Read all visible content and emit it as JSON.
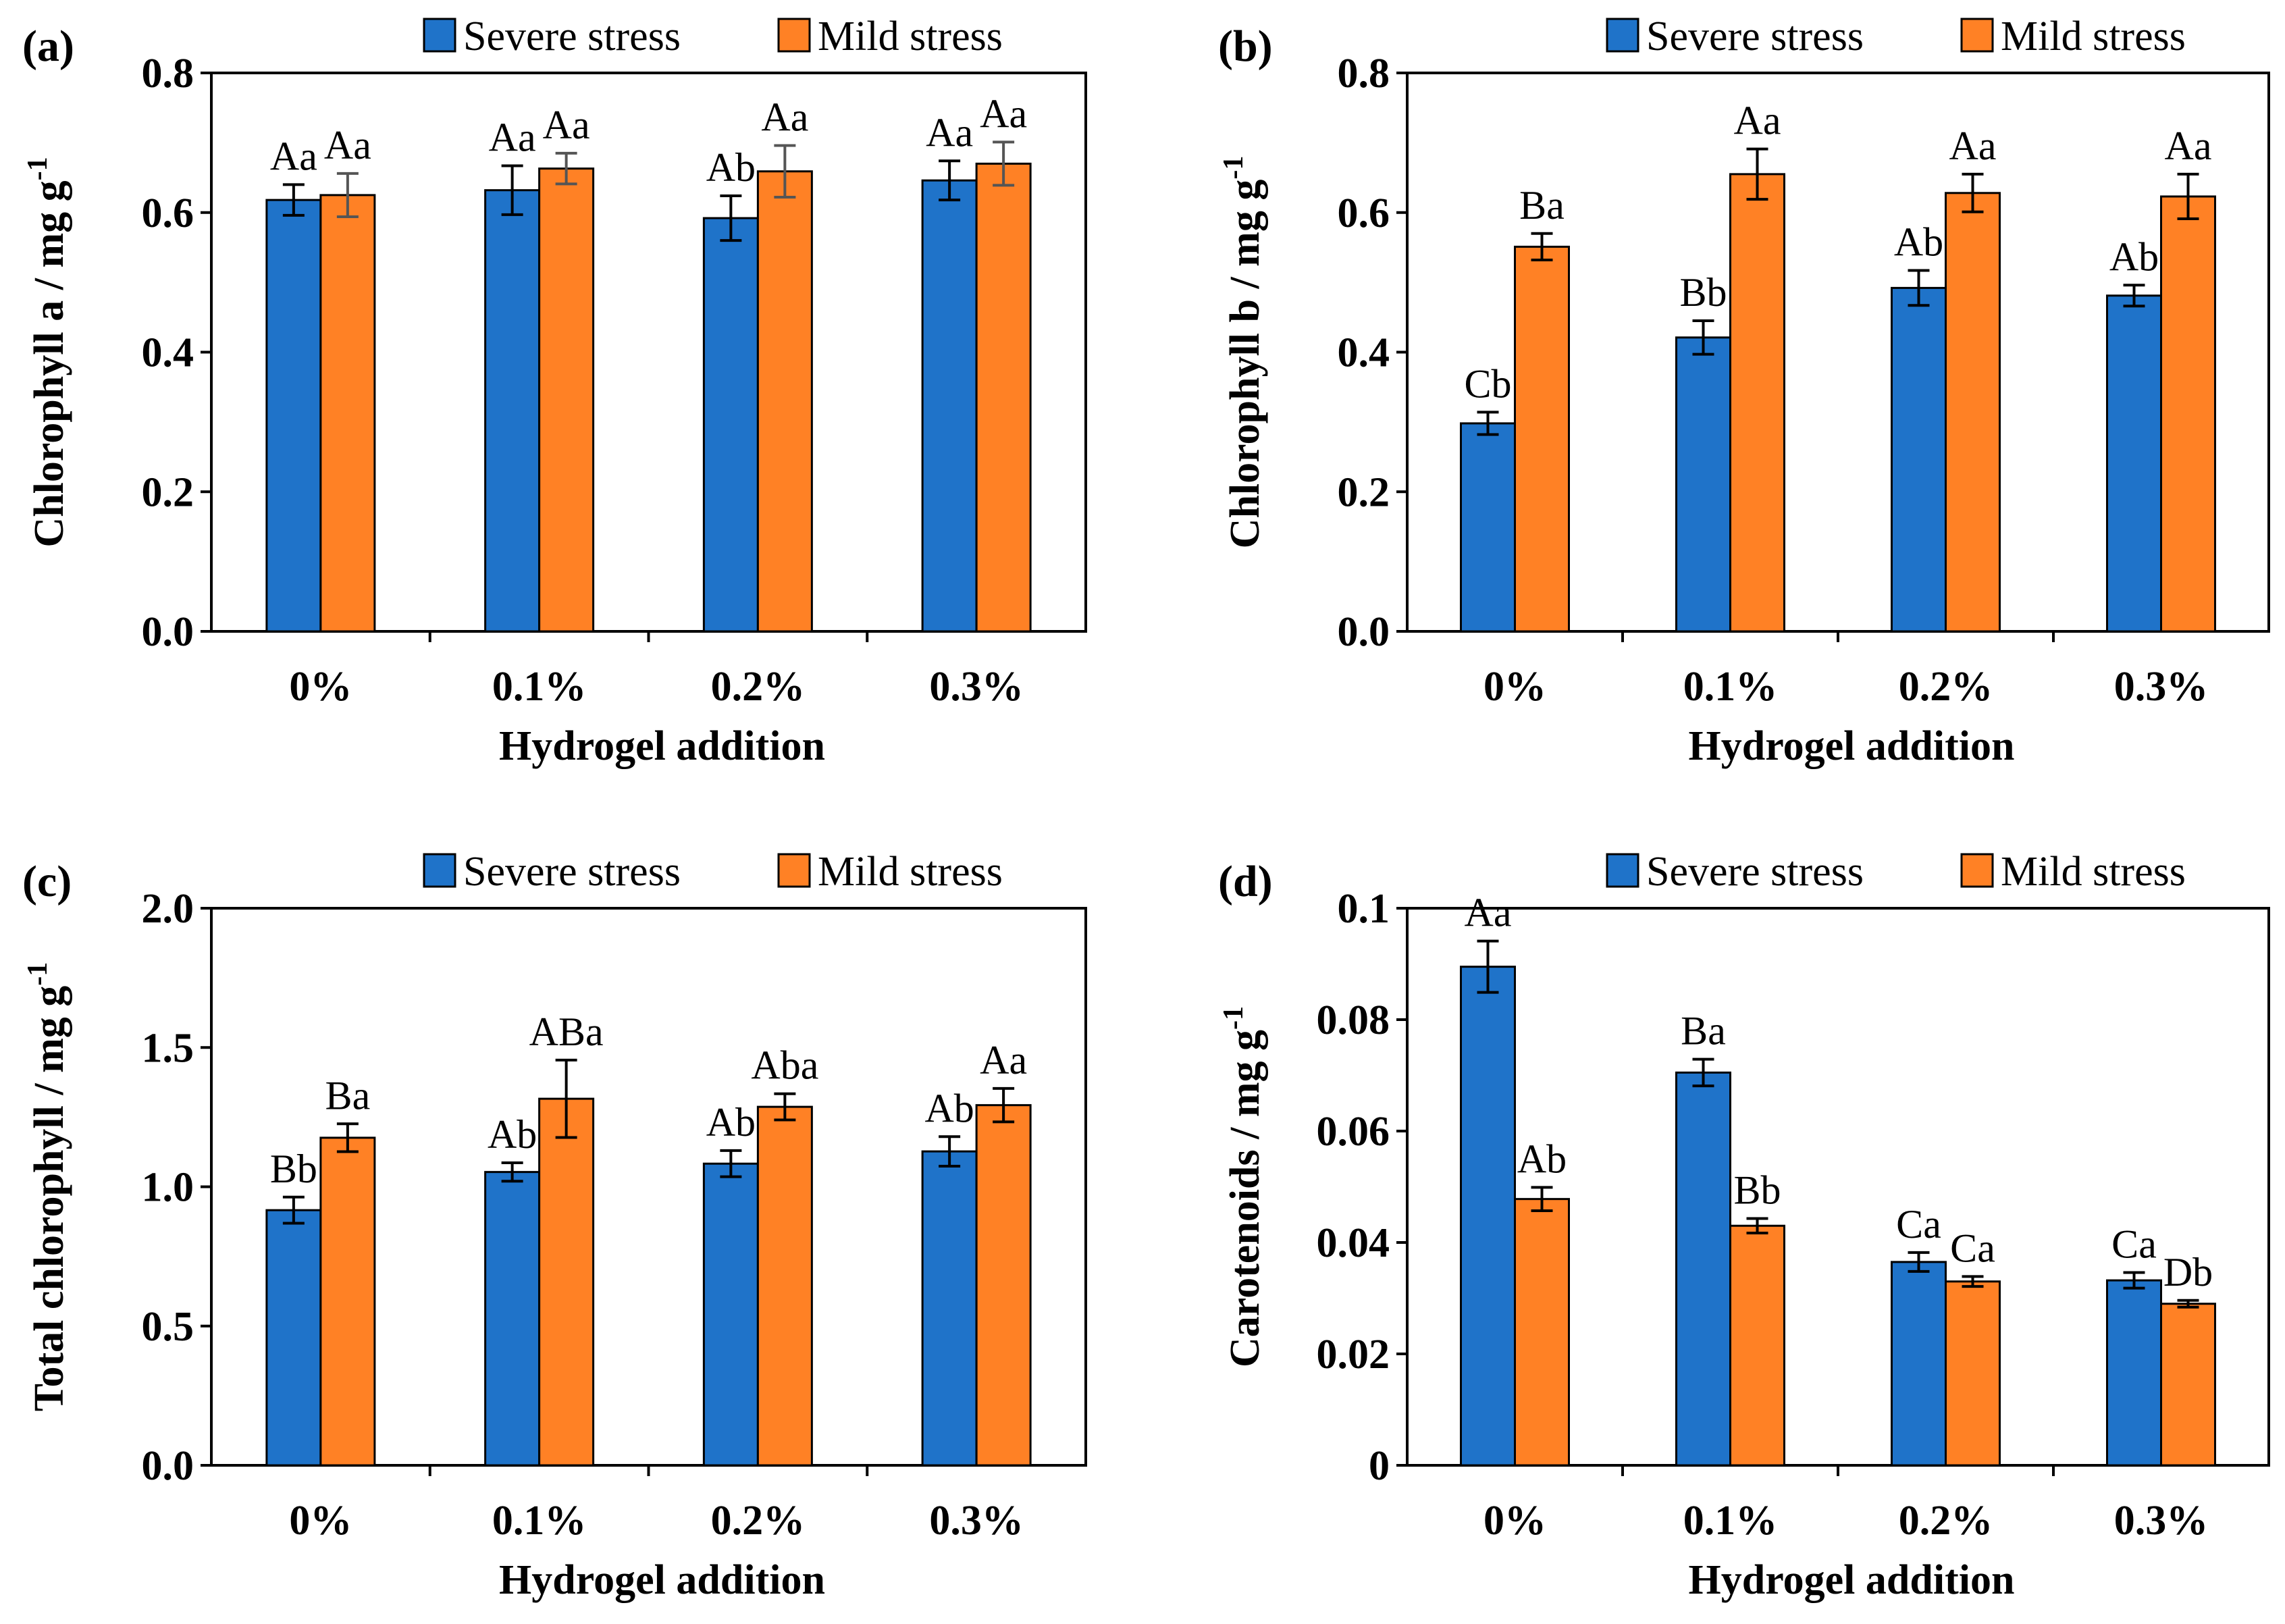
{
  "chart_data": [
    {
      "type": "bar",
      "panel_label": "(a)",
      "categories": [
        "0%",
        "0.1%",
        "0.2%",
        "0.3%"
      ],
      "xlabel": "Hydrogel addition",
      "ylabel_main": "Chlorophyll a / mg g",
      "ylabel_sup": "-1",
      "ylim": [
        0,
        0.8
      ],
      "yticks": [
        0,
        0.2,
        0.4,
        0.6,
        0.8
      ],
      "ytick_labels": [
        "0.0",
        "0.2",
        "0.4",
        "0.6",
        "0.8"
      ],
      "legend_position": "top-right",
      "series": [
        {
          "name": "Severe stress",
          "color": "#1f73c9",
          "values": [
            0.618,
            0.632,
            0.592,
            0.646
          ],
          "errors": [
            0.022,
            0.035,
            0.032,
            0.028
          ],
          "labels": [
            "Aa",
            "Aa",
            "Ab",
            "Aa"
          ]
        },
        {
          "name": "Mild stress",
          "color": "#ff8125",
          "values": [
            0.625,
            0.663,
            0.659,
            0.67
          ],
          "errors": [
            0.031,
            0.022,
            0.037,
            0.031
          ],
          "labels": [
            "Aa",
            "Aa",
            "Aa",
            "Aa"
          ]
        }
      ]
    },
    {
      "type": "bar",
      "panel_label": "(b)",
      "categories": [
        "0%",
        "0.1%",
        "0.2%",
        "0.3%"
      ],
      "xlabel": "Hydrogel addition",
      "ylabel_main": "Chlorophyll b / mg g",
      "ylabel_sup": "-1",
      "ylim": [
        0,
        0.8
      ],
      "yticks": [
        0,
        0.2,
        0.4,
        0.6,
        0.8
      ],
      "ytick_labels": [
        "0.0",
        "0.2",
        "0.4",
        "0.6",
        "0.8"
      ],
      "legend_position": "top-right",
      "series": [
        {
          "name": "Severe stress",
          "color": "#1f73c9",
          "values": [
            0.298,
            0.421,
            0.492,
            0.481
          ],
          "errors": [
            0.016,
            0.024,
            0.025,
            0.015
          ],
          "labels": [
            "Cb",
            "Bb",
            "Ab",
            "Ab"
          ]
        },
        {
          "name": "Mild stress",
          "color": "#ff8125",
          "values": [
            0.551,
            0.655,
            0.628,
            0.623
          ],
          "errors": [
            0.019,
            0.036,
            0.027,
            0.032
          ],
          "labels": [
            "Ba",
            "Aa",
            "Aa",
            "Aa"
          ]
        }
      ]
    },
    {
      "type": "bar",
      "panel_label": "(c)",
      "categories": [
        "0%",
        "0.1%",
        "0.2%",
        "0.3%"
      ],
      "xlabel": "Hydrogel addition",
      "ylabel_main": "Total chlorophyll / mg g",
      "ylabel_sup": "-1",
      "ylim": [
        0,
        2.0
      ],
      "yticks": [
        0,
        0.5,
        1.0,
        1.5,
        2.0
      ],
      "ytick_labels": [
        "0.0",
        "0.5",
        "1.0",
        "1.5",
        "2.0"
      ],
      "legend_position": "top-right",
      "series": [
        {
          "name": "Severe stress",
          "color": "#1f73c9",
          "values": [
            0.916,
            1.053,
            1.083,
            1.127
          ],
          "errors": [
            0.047,
            0.033,
            0.047,
            0.053
          ],
          "labels": [
            "Bb",
            "Ab",
            "Ab",
            "Ab"
          ]
        },
        {
          "name": "Mild stress",
          "color": "#ff8125",
          "values": [
            1.176,
            1.316,
            1.287,
            1.293
          ],
          "errors": [
            0.05,
            0.139,
            0.047,
            0.06
          ],
          "labels": [
            "Ba",
            "ABa",
            "Aba",
            "Aa"
          ]
        }
      ]
    },
    {
      "type": "bar",
      "panel_label": "(d)",
      "categories": [
        "0%",
        "0.1%",
        "0.2%",
        "0.3%"
      ],
      "xlabel": "Hydrogel addition",
      "ylabel_main": "Carotenoids / mg g",
      "ylabel_sup": "-1",
      "ylim": [
        0,
        0.1
      ],
      "yticks": [
        0,
        0.02,
        0.04,
        0.06,
        0.08,
        0.1
      ],
      "ytick_labels": [
        "0",
        "0.02",
        "0.04",
        "0.06",
        "0.08",
        "0.1"
      ],
      "legend_position": "top-right",
      "series": [
        {
          "name": "Severe stress",
          "color": "#1f73c9",
          "values": [
            0.0895,
            0.0705,
            0.0365,
            0.0332
          ],
          "errors": [
            0.0046,
            0.0024,
            0.0017,
            0.0014
          ],
          "labels": [
            "Aa",
            "Ba",
            "Ca",
            "Ca"
          ]
        },
        {
          "name": "Mild stress",
          "color": "#ff8125",
          "values": [
            0.0478,
            0.043,
            0.033,
            0.029
          ],
          "errors": [
            0.0021,
            0.0013,
            0.0009,
            0.0006
          ],
          "labels": [
            "Ab",
            "Bb",
            "Ca",
            "Db"
          ]
        }
      ]
    }
  ]
}
